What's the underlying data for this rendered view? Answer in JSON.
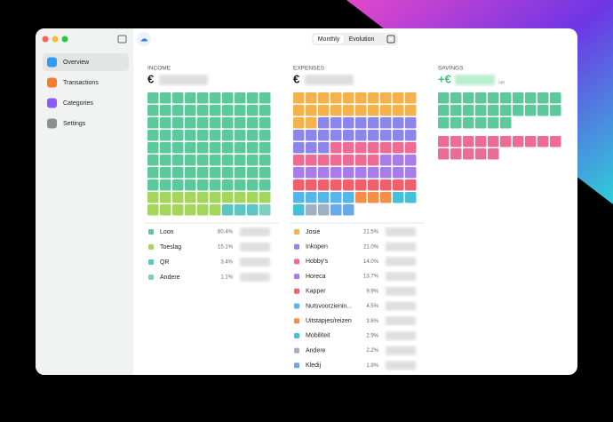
{
  "sidebar": {
    "items": [
      "Overview",
      "Transactions",
      "Categories",
      "Settings"
    ]
  },
  "toolbar": {
    "tabs": [
      "Monthly",
      "Evolution"
    ]
  },
  "income": {
    "title": "INCOME",
    "currency": "€",
    "categories": [
      {
        "name": "Loon",
        "share": 80.4,
        "share_label": "80.4%",
        "color": "#5cc99c"
      },
      {
        "name": "Toeslag",
        "share": 15.1,
        "share_label": "15.1%",
        "color": "#a4d65c"
      },
      {
        "name": "QR",
        "share": 3.4,
        "share_label": "3.4%",
        "color": "#5ec6c2"
      },
      {
        "name": "Andere",
        "share": 1.1,
        "share_label": "1.1%",
        "color": "#7fd0c0"
      }
    ]
  },
  "expenses": {
    "title": "EXPENSES",
    "currency": "€",
    "categories": [
      {
        "name": "Josie",
        "share": 21.5,
        "share_label": "21.5%",
        "color": "#f4b24c"
      },
      {
        "name": "Inkopen",
        "share": 21.0,
        "share_label": "21.0%",
        "color": "#8d86ea"
      },
      {
        "name": "Hobby's",
        "share": 14.0,
        "share_label": "14.0%",
        "color": "#ee6b93"
      },
      {
        "name": "Horeca",
        "share": 13.7,
        "share_label": "13.7%",
        "color": "#a97de9"
      },
      {
        "name": "Kapper",
        "share": 9.9,
        "share_label": "9.9%",
        "color": "#f0606c"
      },
      {
        "name": "Nutsvoorzienin...",
        "share": 4.5,
        "share_label": "4.5%",
        "color": "#54b6ea"
      },
      {
        "name": "Uitstapjes/reizen",
        "share": 3.6,
        "share_label": "3.6%",
        "color": "#f38f48"
      },
      {
        "name": "Mobiliteit",
        "share": 2.9,
        "share_label": "2.9%",
        "color": "#45c0d8"
      },
      {
        "name": "Andere",
        "share": 2.2,
        "share_label": "2.2%",
        "color": "#9fb0c4"
      },
      {
        "name": "Kledij",
        "share": 1.9,
        "share_label": "1.9%",
        "color": "#6aa9e8"
      }
    ]
  },
  "savings": {
    "title": "SAVINGS",
    "currency": "+€",
    "suffix": "net"
  }
}
